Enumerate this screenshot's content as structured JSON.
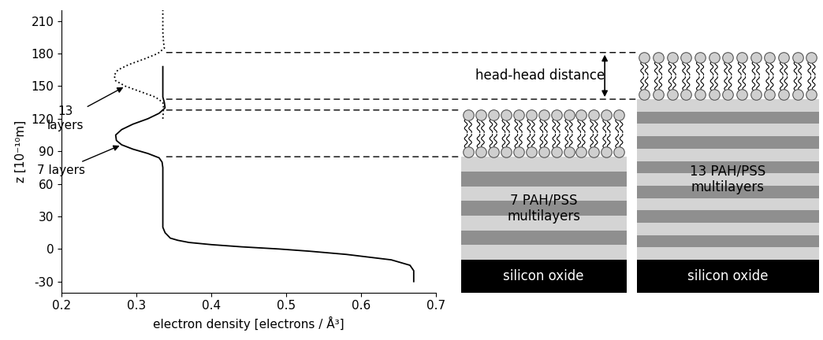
{
  "chart_data": {
    "type": "line",
    "x_label": "electron density [electrons / Å³]",
    "y_label": "z [10⁻¹⁰m]",
    "xlim": [
      0.2,
      0.7
    ],
    "ylim": [
      -40,
      220
    ],
    "xticks": [
      0.2,
      0.3,
      0.4,
      0.5,
      0.6,
      0.7
    ],
    "yticks": [
      -30,
      0,
      30,
      60,
      90,
      120,
      150,
      180,
      210
    ],
    "series": [
      {
        "name": "7 layers",
        "color": "#000000",
        "line_style": "solid",
        "x": [
          0.67,
          0.67,
          0.665,
          0.64,
          0.58,
          0.53,
          0.49,
          0.44,
          0.4,
          0.37,
          0.355,
          0.345,
          0.338,
          0.335,
          0.335,
          0.335,
          0.335,
          0.334,
          0.33,
          0.315,
          0.295,
          0.28,
          0.273,
          0.272,
          0.28,
          0.295,
          0.315,
          0.33,
          0.338,
          0.337,
          0.335,
          0.335,
          0.335,
          0.335
        ],
        "y": [
          -30,
          -20,
          -15,
          -10,
          -5,
          -2,
          0,
          2,
          4,
          6,
          8,
          10,
          15,
          20,
          40,
          60,
          75,
          80,
          84,
          88,
          92,
          96,
          100,
          105,
          110,
          115,
          120,
          125,
          130,
          135,
          140,
          150,
          160,
          168
        ]
      },
      {
        "name": "13\nlayers",
        "color": "#000000",
        "line_style": "dotted",
        "x": [
          0.335,
          0.336,
          0.335,
          0.325,
          0.305,
          0.285,
          0.272,
          0.27,
          0.275,
          0.29,
          0.31,
          0.328,
          0.337,
          0.336,
          0.335,
          0.335,
          0.335
        ],
        "y": [
          120,
          130,
          135,
          140,
          145,
          150,
          155,
          160,
          165,
          170,
          175,
          180,
          185,
          190,
          200,
          210,
          220
        ]
      }
    ]
  },
  "diagram": {
    "distance_label": "head-head distance",
    "samples": [
      {
        "layers": 7,
        "label": "7 PAH/PSS\nmultilayers",
        "substrate": "silicon oxide",
        "lipid_bottom": 85,
        "lipid_top": 128
      },
      {
        "layers": 13,
        "label": "13 PAH/PSS\nmultilayers",
        "substrate": "silicon oxide",
        "lipid_bottom": 138,
        "lipid_top": 181
      }
    ]
  }
}
